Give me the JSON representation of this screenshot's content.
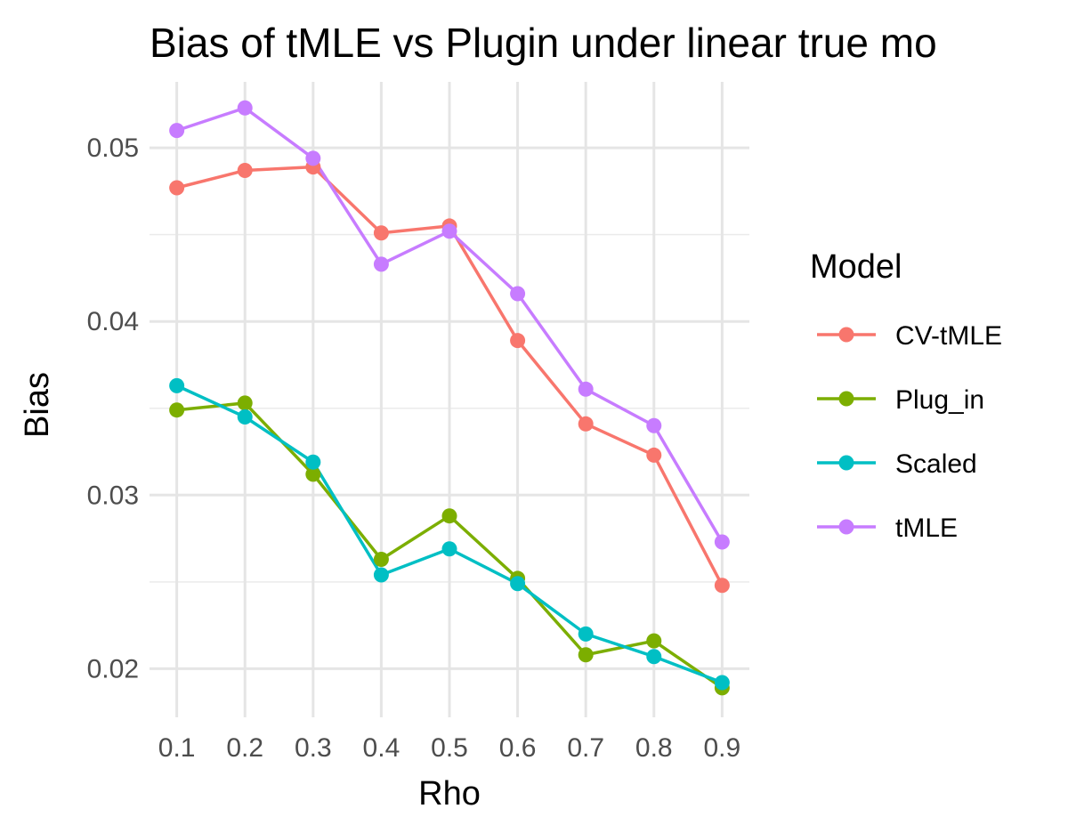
{
  "chart_data": {
    "type": "line",
    "title": "Bias of tMLE vs Plugin under linear true mo",
    "xlabel": "Rho",
    "ylabel": "Bias",
    "x": [
      0.1,
      0.2,
      0.3,
      0.4,
      0.5,
      0.6,
      0.7,
      0.8,
      0.9
    ],
    "x_tick_labels": [
      "0.1",
      "0.2",
      "0.3",
      "0.4",
      "0.5",
      "0.6",
      "0.7",
      "0.8",
      "0.9"
    ],
    "y_ticks": [
      0.02,
      0.03,
      0.04,
      0.05
    ],
    "y_tick_labels": [
      "0.02",
      "0.03",
      "0.04",
      "0.05"
    ],
    "xlim": [
      0.06,
      0.94
    ],
    "ylim": [
      0.0172,
      0.0538
    ],
    "grid": true,
    "legend": {
      "title": "Model",
      "placement": "right"
    },
    "series": [
      {
        "name": "CV-tMLE",
        "color": "#F8766D",
        "values": [
          0.0477,
          0.0487,
          0.0489,
          0.0451,
          0.0455,
          0.0389,
          0.0341,
          0.0323,
          0.0248
        ]
      },
      {
        "name": "Plug_in",
        "color": "#7CAE00",
        "values": [
          0.0349,
          0.0353,
          0.0312,
          0.0263,
          0.0288,
          0.0252,
          0.0208,
          0.0216,
          0.0189
        ]
      },
      {
        "name": "Scaled",
        "color": "#00BFC4",
        "values": [
          0.0363,
          0.0345,
          0.0319,
          0.0254,
          0.0269,
          0.0249,
          0.022,
          0.0207,
          0.0192
        ]
      },
      {
        "name": "tMLE",
        "color": "#C77CFF",
        "values": [
          0.051,
          0.0523,
          0.0494,
          0.0433,
          0.0452,
          0.0416,
          0.0361,
          0.034,
          0.0273
        ]
      }
    ]
  }
}
